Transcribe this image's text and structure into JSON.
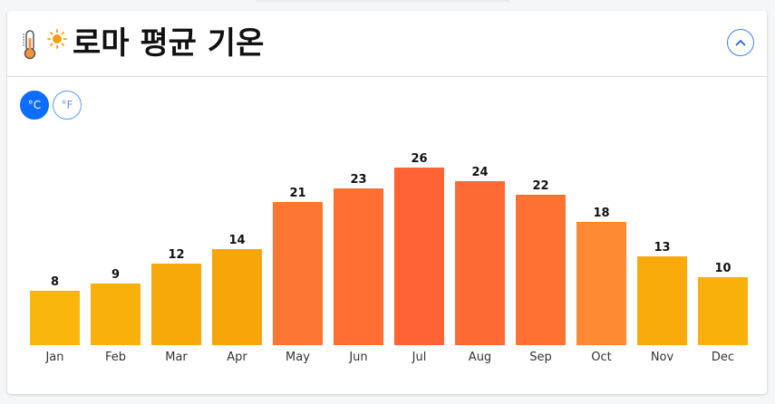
{
  "header": {
    "icons": [
      "thermometer-icon",
      "sun-icon"
    ],
    "icon_glyphs": "🌡️☀️",
    "title": "로마 평균 기온",
    "collapse_glyph": "chevron-up"
  },
  "unit_toggle": {
    "celsius_label": "°C",
    "fahrenheit_label": "°F",
    "selected": "°C"
  },
  "colors": {
    "accent": "#0d6efd",
    "cool": "#f8b00c",
    "mild": "#f7a70b",
    "warm": "#fe8833",
    "hot": "#ff7033",
    "hottest": "#ff6233"
  },
  "chart_data": {
    "type": "bar",
    "title": "로마 평균 기온",
    "xlabel": "",
    "ylabel": "°C",
    "categories": [
      "Jan",
      "Feb",
      "Mar",
      "Apr",
      "May",
      "Jun",
      "Jul",
      "Aug",
      "Sep",
      "Oct",
      "Nov",
      "Dec"
    ],
    "values": [
      8,
      9,
      12,
      14,
      21,
      23,
      26,
      24,
      22,
      18,
      13,
      10
    ],
    "bar_colors": [
      "#f8b70a",
      "#f8b00a",
      "#f7a90a",
      "#f7a60a",
      "#fe7633",
      "#ff6e33",
      "#ff6233",
      "#ff6933",
      "#ff7033",
      "#fe8a33",
      "#f8aa0a",
      "#f8b00a"
    ],
    "data_labels": true,
    "grid": false,
    "legend": "none",
    "ylim": [
      0,
      26
    ]
  }
}
